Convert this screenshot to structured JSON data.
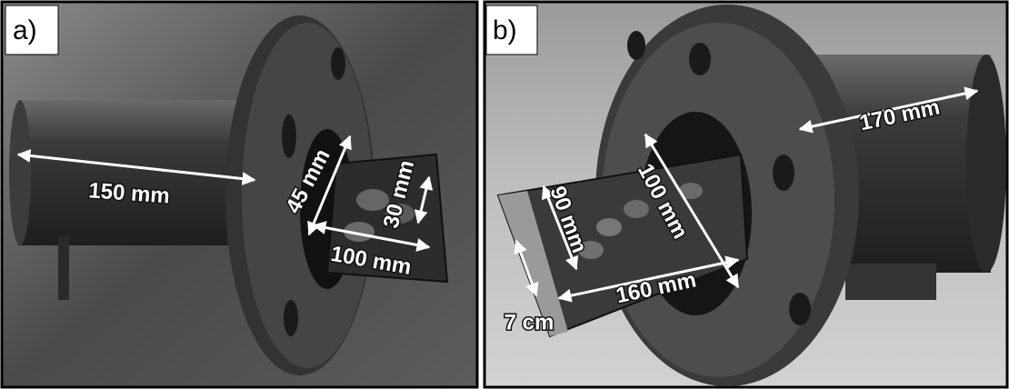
{
  "panels": [
    {
      "label": "a)",
      "annotations": [
        "150 mm",
        "45 mm",
        "30 mm",
        "100 mm"
      ]
    },
    {
      "label": "b)",
      "annotations": [
        "170 mm",
        "100 mm",
        "90 mm",
        "160 mm",
        "7 cm"
      ]
    }
  ]
}
